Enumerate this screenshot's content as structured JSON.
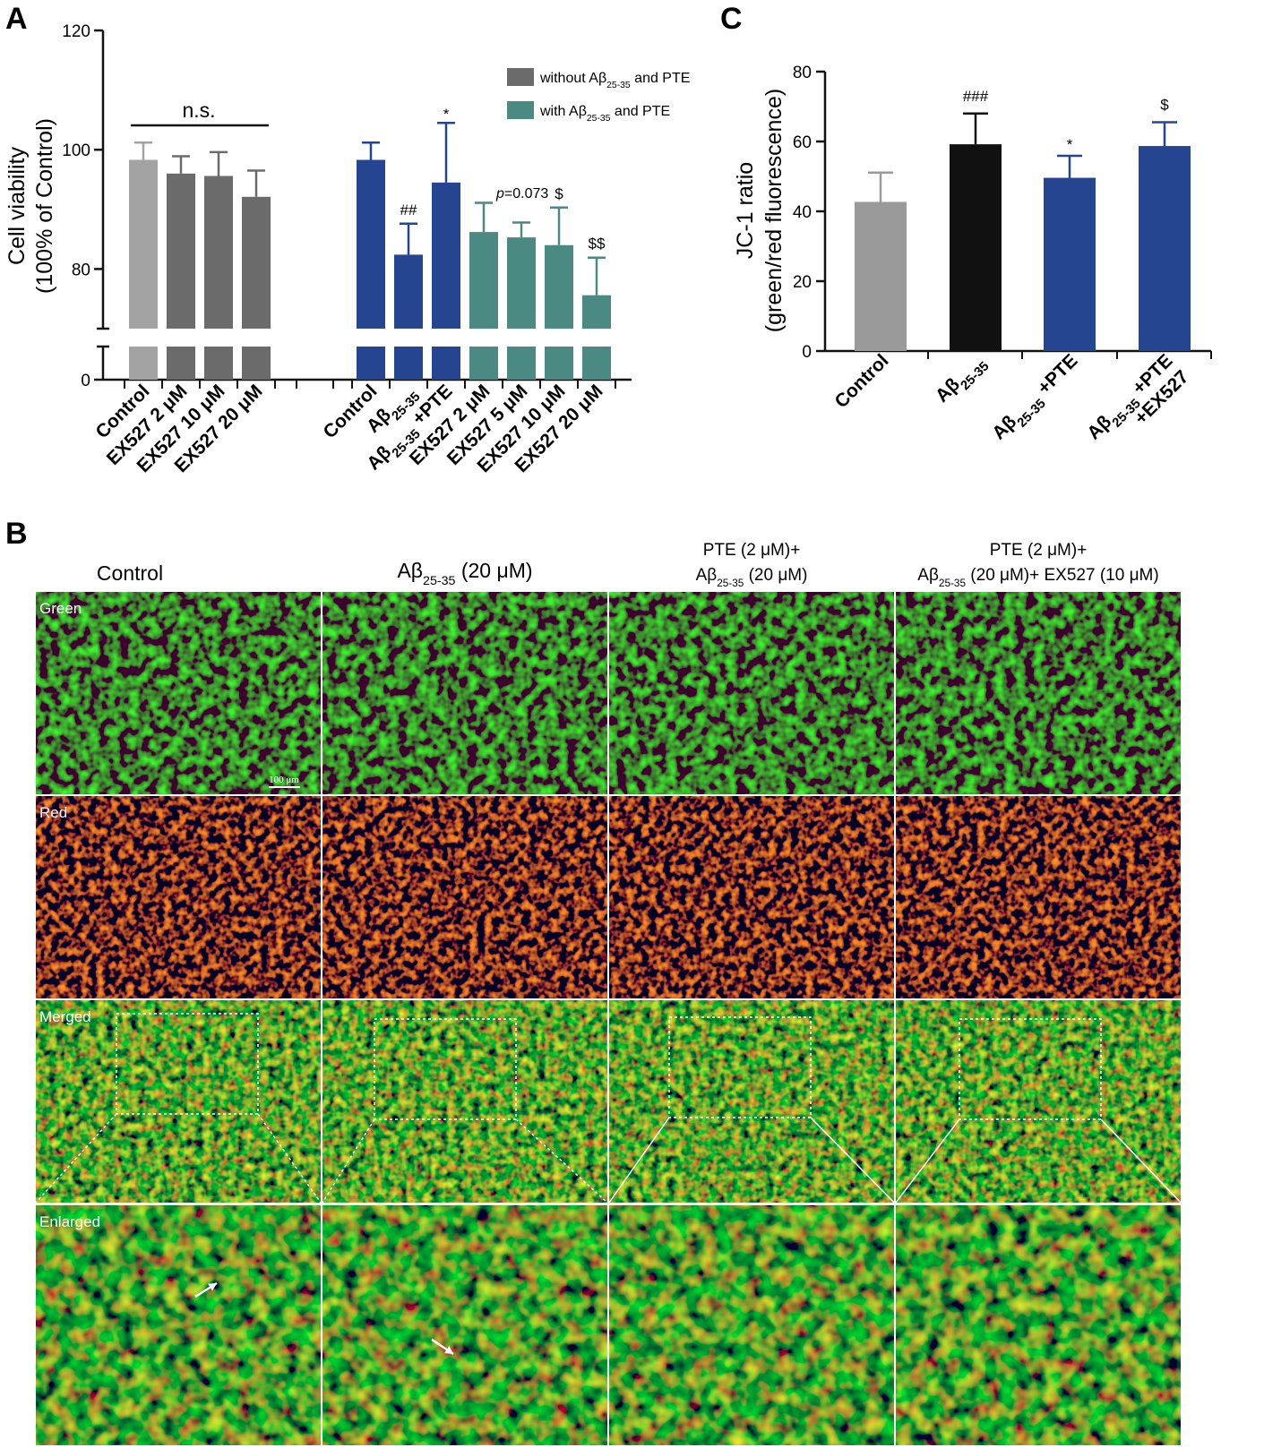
{
  "panels": {
    "a": "A",
    "b": "B",
    "c": "C"
  },
  "colors": {
    "control_light": "#a3a3a3",
    "without": "#6b6b6b",
    "blue": "#254590",
    "teal": "#4a8a82",
    "black": "#111111",
    "gray_c": "#9a9a9a"
  },
  "chart_data": [
    {
      "type": "bar",
      "panel": "A",
      "ylabel": "Cell viability",
      "ylabel2": "(100% of Control)",
      "ylim": [
        0,
        120
      ],
      "axis_break": true,
      "yticks": [
        "0",
        "80",
        "100",
        "120"
      ],
      "legend": [
        {
          "pre": "without A",
          "beta": "β",
          "sub": "25-35",
          "post": " and PTE",
          "color": "#6b6b6b"
        },
        {
          "pre": "with A",
          "beta": "β",
          "sub": "25-35",
          "post": " and PTE",
          "color": "#4a8a82"
        }
      ],
      "legend_position": "top-right",
      "bars": [
        {
          "label": "Control",
          "value": 98.3,
          "err": 2.9,
          "color": "#a3a3a3"
        },
        {
          "label": "EX527 2 μM",
          "value": 96.0,
          "err": 2.9,
          "color": "#6b6b6b"
        },
        {
          "label": "EX527 10 μM",
          "value": 95.6,
          "err": 4.0,
          "color": "#6b6b6b"
        },
        {
          "label": "EX527 20 μM",
          "value": 92.1,
          "err": 4.4,
          "color": "#6b6b6b"
        },
        {
          "label": "Control",
          "value": 98.3,
          "err": 2.9,
          "color": "#254590"
        },
        {
          "pre": "A",
          "beta": "β",
          "sub": "25-35",
          "value": 82.4,
          "err": 5.2,
          "color": "#254590",
          "sig": "##"
        },
        {
          "pre": "A",
          "beta": "β",
          "sub": "25-35",
          "post": " +PTE",
          "value": 94.5,
          "err": 10.0,
          "color": "#254590",
          "sig": "*"
        },
        {
          "label": "EX527 2 μM",
          "value": 86.2,
          "err": 4.9,
          "color": "#4a8a82"
        },
        {
          "label": "EX527 5 μM",
          "value": 85.3,
          "err": 2.5,
          "color": "#4a8a82"
        },
        {
          "label": "EX527 10 μM",
          "value": 84.0,
          "err": 6.3,
          "color": "#4a8a82",
          "sig": "$"
        },
        {
          "label": "EX527 20 μM",
          "value": 75.6,
          "err": 6.3,
          "color": "#4a8a82",
          "sig": "$$"
        }
      ],
      "annotations": {
        "ns": "n.s.",
        "p_italic": "p",
        "p_rest": "=0.073"
      }
    },
    {
      "type": "bar",
      "panel": "C",
      "ylabel": "JC-1 ratio",
      "ylabel2": "(green/red fluorescence)",
      "ylim": [
        0,
        80
      ],
      "yticks": [
        "0",
        "20",
        "40",
        "60",
        "80"
      ],
      "bars": [
        {
          "label": "Control",
          "value": 42.7,
          "err": 8.4,
          "color": "#9a9a9a"
        },
        {
          "pre": "A",
          "beta": "β",
          "sub": "25-35",
          "value": 59.2,
          "err": 8.8,
          "color": "#111111",
          "sig": "###"
        },
        {
          "pre": "A",
          "beta": "β",
          "sub": "25-35",
          "post": " +PTE",
          "value": 49.6,
          "err": 6.3,
          "color": "#254590",
          "sig": "*"
        },
        {
          "pre": "A",
          "beta": "β",
          "sub": "25-35",
          "post": " +PTE",
          "line2": "+EX527",
          "value": 58.7,
          "err": 6.8,
          "color": "#254590",
          "sig": "$"
        }
      ]
    }
  ],
  "micrographs": {
    "columns": [
      {
        "l1": "Control"
      },
      {
        "pre": "A",
        "beta": "β",
        "sub": "25-35",
        "post": " (20 μM)"
      },
      {
        "l1": "PTE (2 μM)+",
        "pre": "A",
        "beta": "β",
        "sub": "25-35",
        "post": " (20 μM)"
      },
      {
        "l1": "PTE (2 μM)+",
        "pre": "A",
        "beta": "β",
        "sub": "25-35",
        "post": " (20 μM)+ EX527 (10 μM)"
      }
    ],
    "rows": [
      "Green",
      "Red",
      "Merged",
      "Enlarged"
    ],
    "scale_bar": "100 μm"
  }
}
